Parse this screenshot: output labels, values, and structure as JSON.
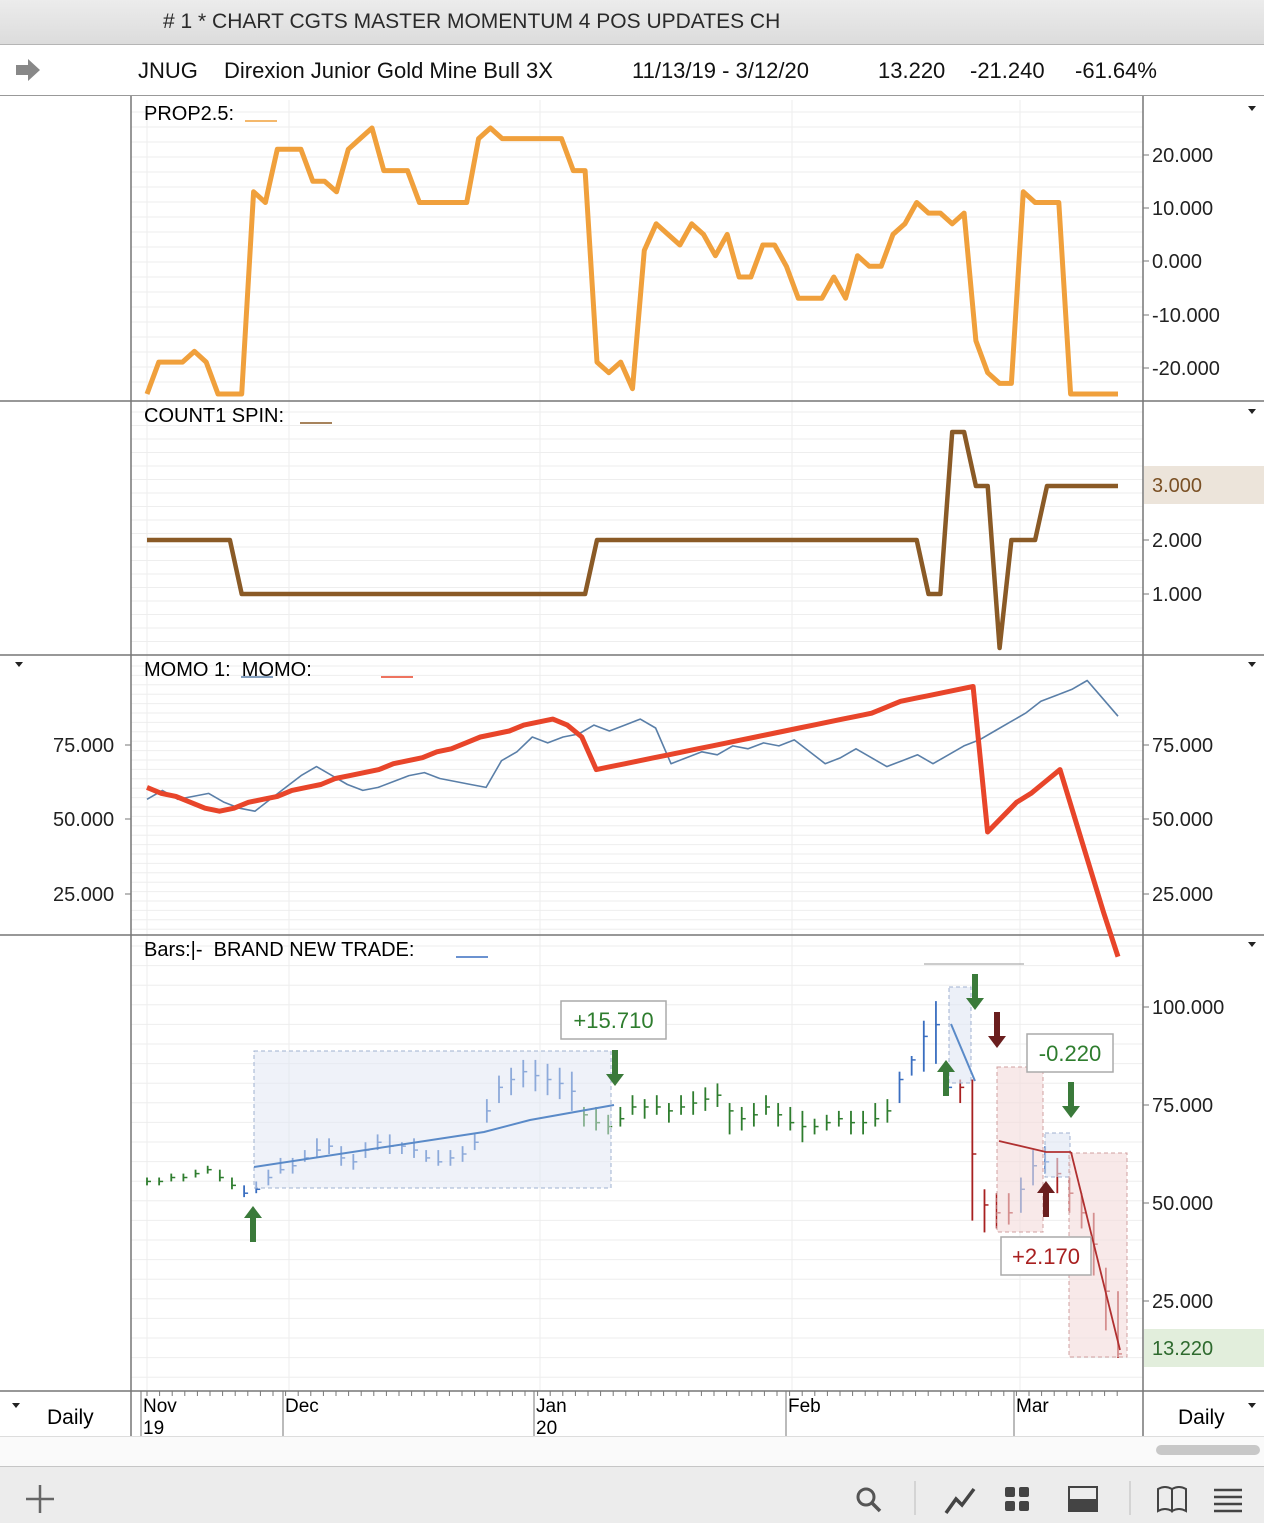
{
  "window": {
    "title": "# 1 * CHART CGTS MASTER MOMENTUM 4 POS UPDATES CH"
  },
  "symbol_bar": {
    "symbol": "JNUG",
    "name": "Direxion Junior Gold Mine Bull 3X",
    "date_range": "11/13/19 - 3/12/20",
    "last": "13.220",
    "change": "-21.240",
    "change_pct": "-61.64%"
  },
  "timeframe_left": "Daily",
  "timeframe_right": "Daily",
  "x_axis": {
    "months": [
      {
        "label": "Nov",
        "year": "19"
      },
      {
        "label": "Dec",
        "year": ""
      },
      {
        "label": "Jan",
        "year": "20"
      },
      {
        "label": "Feb",
        "year": ""
      },
      {
        "label": "Mar",
        "year": ""
      }
    ]
  },
  "colors": {
    "prop": "#f0a03c",
    "count": "#8a5a26",
    "momo1": "#5a7fa8",
    "momo": "#e8452a",
    "bar_up": "#2e7d2e",
    "bar_trade": "#3a6ec0",
    "bar_down": "#a82020"
  },
  "chart_data": [
    {
      "type": "line",
      "title": "PROP2.5:",
      "ylim": [
        -25,
        25
      ],
      "yticks": [
        "20.000",
        "10.000",
        "0.000",
        "-10.000",
        "-20.000"
      ],
      "series": [
        {
          "name": "PROP2.5",
          "values": [
            -25,
            -19,
            -19,
            -19,
            -17,
            -19,
            -25,
            -25,
            -25,
            13,
            11,
            21,
            21,
            21,
            15,
            15,
            13,
            21,
            23,
            25,
            17,
            17,
            17,
            11,
            11,
            11,
            11,
            11,
            23,
            25,
            23,
            23,
            23,
            23,
            23,
            23,
            17,
            17,
            -19,
            -21,
            -19,
            -24,
            2,
            7,
            5,
            3,
            7,
            5,
            1,
            5,
            -3,
            -3,
            3,
            3,
            -1,
            -7,
            -7,
            -7,
            -3,
            -7,
            1,
            -1,
            -1,
            5,
            7,
            11,
            9,
            9,
            7,
            9,
            -15,
            -21,
            -23,
            -23,
            13,
            11,
            11,
            11,
            -25,
            -25,
            -25,
            -25,
            -25
          ]
        }
      ]
    },
    {
      "type": "line",
      "title": "COUNT1 SPIN:",
      "ylim": [
        0,
        4
      ],
      "yticks": [
        "2.000",
        "1.000"
      ],
      "last_label": "3.000",
      "series": [
        {
          "name": "COUNT1 SPIN",
          "values": [
            2,
            2,
            2,
            2,
            2,
            2,
            2,
            2,
            1,
            1,
            1,
            1,
            1,
            1,
            1,
            1,
            1,
            1,
            1,
            1,
            1,
            1,
            1,
            1,
            1,
            1,
            1,
            1,
            1,
            1,
            1,
            1,
            1,
            1,
            1,
            1,
            1,
            1,
            2,
            2,
            2,
            2,
            2,
            2,
            2,
            2,
            2,
            2,
            2,
            2,
            2,
            2,
            2,
            2,
            2,
            2,
            2,
            2,
            2,
            2,
            2,
            2,
            2,
            2,
            2,
            2,
            1,
            1,
            4,
            4,
            3,
            3,
            0,
            2,
            2,
            2,
            3,
            3,
            3,
            3,
            3,
            3,
            3
          ]
        }
      ]
    },
    {
      "type": "line",
      "title": "MOMO 1:  MOMO:",
      "ylim": [
        5,
        100
      ],
      "yticks": [
        "75.000",
        "50.000",
        "25.000"
      ],
      "series": [
        {
          "name": "MOMO 1",
          "values": [
            58,
            61,
            58,
            59,
            60,
            57,
            55,
            54,
            58,
            62,
            66,
            69,
            66,
            63,
            61,
            62,
            64,
            66,
            67,
            65,
            64,
            63,
            62,
            71,
            74,
            79,
            77,
            79,
            80,
            83,
            81,
            83,
            85,
            82,
            70,
            72,
            74,
            73,
            76,
            75,
            77,
            76,
            78,
            74,
            70,
            72,
            75,
            72,
            69,
            71,
            73,
            70,
            73,
            76,
            78,
            81,
            84,
            87,
            91,
            93,
            95,
            98,
            92,
            86
          ]
        },
        {
          "name": "MOMO",
          "values": [
            62,
            60,
            59,
            57,
            55,
            54,
            55,
            57,
            58,
            59,
            61,
            62,
            63,
            65,
            66,
            67,
            68,
            70,
            71,
            72,
            74,
            75,
            77,
            79,
            80,
            81,
            83,
            84,
            85,
            83,
            79,
            68,
            69,
            70,
            71,
            72,
            73,
            74,
            75,
            76,
            77,
            78,
            79,
            80,
            81,
            82,
            83,
            84,
            85,
            86,
            87,
            89,
            91,
            92,
            93,
            94,
            95,
            96,
            47,
            52,
            57,
            60,
            64,
            68,
            52,
            36,
            20,
            5
          ]
        }
      ]
    },
    {
      "type": "bar",
      "title": "Bars:|-  BRAND NEW TRADE:",
      "ylim": [
        5,
        115
      ],
      "yticks": [
        "100.000",
        "75.000",
        "50.000",
        "25.000"
      ],
      "last_label": "13.220",
      "bars_ohlc": [
        [
          58,
          57,
          59
        ],
        [
          58,
          57,
          59
        ],
        [
          59,
          58,
          60
        ],
        [
          59,
          58,
          60
        ],
        [
          60,
          59,
          61
        ],
        [
          61,
          60,
          62
        ],
        [
          59,
          58,
          61
        ],
        [
          57,
          56,
          59
        ],
        [
          55,
          54,
          57
        ],
        [
          56,
          55,
          58
        ],
        [
          59,
          57,
          61
        ],
        [
          61,
          60,
          64
        ],
        [
          62,
          60,
          64
        ],
        [
          64,
          63,
          66
        ],
        [
          66,
          64,
          69
        ],
        [
          67,
          65,
          69
        ],
        [
          64,
          62,
          67
        ],
        [
          63,
          61,
          65
        ],
        [
          66,
          64,
          68
        ],
        [
          68,
          66,
          70
        ],
        [
          67,
          65,
          70
        ],
        [
          67,
          65,
          68
        ],
        [
          66,
          64,
          69
        ],
        [
          64,
          63,
          66
        ],
        [
          63,
          62,
          66
        ],
        [
          64,
          62,
          66
        ],
        [
          65,
          63,
          67
        ],
        [
          68,
          66,
          70
        ],
        [
          76,
          73,
          79
        ],
        [
          82,
          78,
          85
        ],
        [
          84,
          80,
          87
        ],
        [
          86,
          82,
          89
        ],
        [
          85,
          81,
          89
        ],
        [
          84,
          80,
          88
        ],
        [
          83,
          79,
          87
        ],
        [
          81,
          76,
          86
        ],
        [
          75,
          72,
          77
        ],
        [
          73,
          71,
          77
        ],
        [
          72,
          70,
          75
        ],
        [
          74,
          72,
          77
        ],
        [
          77,
          75,
          80
        ],
        [
          77,
          74,
          79
        ],
        [
          77,
          75,
          80
        ],
        [
          76,
          73,
          78
        ],
        [
          77,
          75,
          80
        ],
        [
          78,
          75,
          81
        ],
        [
          79,
          76,
          82
        ],
        [
          80,
          77,
          83
        ],
        [
          76,
          70,
          78
        ],
        [
          74,
          71,
          77
        ],
        [
          75,
          72,
          78
        ],
        [
          77,
          75,
          80
        ],
        [
          75,
          72,
          78
        ],
        [
          73,
          71,
          77
        ],
        [
          72,
          68,
          76
        ],
        [
          72,
          70,
          74
        ],
        [
          73,
          71,
          75
        ],
        [
          74,
          72,
          76
        ],
        [
          73,
          70,
          76
        ],
        [
          73,
          70,
          76
        ],
        [
          74,
          72,
          78
        ],
        [
          76,
          73,
          79
        ],
        [
          84,
          78,
          86
        ],
        [
          89,
          85,
          90
        ],
        [
          95,
          86,
          99
        ],
        [
          98,
          88,
          104
        ],
        [
          82,
          80,
          86
        ],
        [
          82,
          78,
          84
        ],
        [
          65,
          48,
          84
        ],
        [
          52,
          45,
          56
        ],
        [
          50,
          46,
          55
        ],
        [
          50,
          47,
          55
        ],
        [
          56,
          50,
          59
        ],
        [
          62,
          57,
          66
        ],
        [
          63,
          60,
          67
        ],
        [
          60,
          55,
          64
        ],
        [
          55,
          50,
          59
        ],
        [
          50,
          46,
          55
        ],
        [
          42,
          34,
          50
        ],
        [
          30,
          20,
          36
        ],
        [
          14,
          13,
          30
        ]
      ],
      "annotations": [
        "+15.710",
        "-0.220",
        "+2.170"
      ]
    }
  ]
}
